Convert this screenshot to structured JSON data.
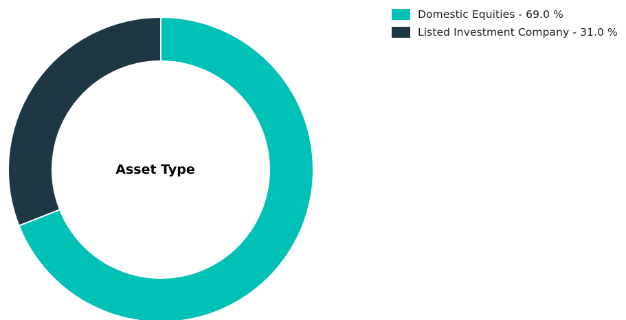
{
  "chart_data": {
    "type": "pie",
    "title": "Asset Type",
    "slices": [
      {
        "label": "Domestic Equities",
        "value": 69.0,
        "legend_text": "Domestic Equities - 69.0 %",
        "color": "#00c1b5"
      },
      {
        "label": "Listed Investment Company",
        "value": 31.0,
        "legend_text": "Listed Investment Company - 31.0 %",
        "color": "#1d3745"
      }
    ],
    "donut": true,
    "start_angle_deg": 0,
    "direction": "clockwise",
    "legend_position": "top-right"
  }
}
